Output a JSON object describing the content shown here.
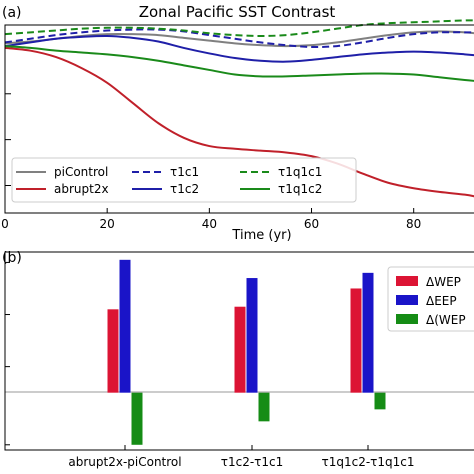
{
  "chart_data": [
    {
      "type": "line",
      "panel_label": "(a)",
      "title": "Zonal Pacific SST Contrast",
      "xlabel": "Time (yr)",
      "ylabel": "",
      "xlim": [
        0,
        92
      ],
      "ylim": [
        -1.8,
        0.25
      ],
      "x_ticks": [
        0,
        20,
        40,
        60,
        80
      ],
      "y_gridlines": [
        0,
        -0.5,
        -1.0,
        -1.5
      ],
      "grid": "y-only",
      "legend": "lower-left, 3 columns",
      "x": [
        0,
        5,
        10,
        15,
        20,
        25,
        30,
        35,
        40,
        45,
        50,
        55,
        60,
        65,
        70,
        75,
        80,
        85,
        90,
        92
      ],
      "series": [
        {
          "name": "piControl",
          "color": "#808080",
          "style": "solid",
          "values": [
            0.05,
            0.07,
            0.1,
            0.13,
            0.15,
            0.15,
            0.14,
            0.11,
            0.08,
            0.05,
            0.03,
            0.02,
            0.03,
            0.06,
            0.1,
            0.14,
            0.17,
            0.18,
            0.17,
            0.16
          ]
        },
        {
          "name": "abrupt2x",
          "color": "#c0202a",
          "style": "solid",
          "values": [
            0.0,
            -0.03,
            -0.1,
            -0.22,
            -0.38,
            -0.6,
            -0.82,
            -0.98,
            -1.07,
            -1.1,
            -1.12,
            -1.14,
            -1.18,
            -1.26,
            -1.37,
            -1.47,
            -1.53,
            -1.57,
            -1.6,
            -1.62
          ]
        },
        {
          "name": "τ1c1",
          "color": "#1f1fa8",
          "style": "dashed",
          "values": [
            0.06,
            0.1,
            0.14,
            0.17,
            0.19,
            0.2,
            0.2,
            0.18,
            0.14,
            0.1,
            0.06,
            0.03,
            0.01,
            0.02,
            0.06,
            0.11,
            0.15,
            0.17,
            0.17,
            0.17
          ]
        },
        {
          "name": "τ1c2",
          "color": "#1f1fa8",
          "style": "solid",
          "values": [
            0.02,
            0.06,
            0.1,
            0.12,
            0.13,
            0.11,
            0.07,
            0.0,
            -0.06,
            -0.11,
            -0.14,
            -0.15,
            -0.13,
            -0.1,
            -0.07,
            -0.05,
            -0.04,
            -0.05,
            -0.07,
            -0.08
          ]
        },
        {
          "name": "τ1q1c1",
          "color": "#1a8a1a",
          "style": "dashed",
          "values": [
            0.15,
            0.17,
            0.19,
            0.21,
            0.22,
            0.22,
            0.21,
            0.19,
            0.16,
            0.14,
            0.13,
            0.14,
            0.17,
            0.21,
            0.25,
            0.27,
            0.28,
            0.29,
            0.3,
            0.3
          ]
        },
        {
          "name": "τ1q1c2",
          "color": "#1a8a1a",
          "style": "solid",
          "values": [
            0.02,
            0.0,
            -0.03,
            -0.05,
            -0.07,
            -0.1,
            -0.14,
            -0.19,
            -0.24,
            -0.29,
            -0.31,
            -0.31,
            -0.3,
            -0.29,
            -0.28,
            -0.28,
            -0.29,
            -0.32,
            -0.35,
            -0.36
          ]
        }
      ]
    },
    {
      "type": "bar",
      "panel_label": "(b)",
      "title": "",
      "xlabel": "",
      "ylabel": "",
      "ylim": [
        -1.1,
        2.7
      ],
      "grid": "off",
      "legend": "top-right",
      "categories": [
        "abrupt2x-piControl",
        "τ1c2-τ1c1",
        "τ1q1c2-τ1q1c1"
      ],
      "series": [
        {
          "name": "ΔWEP",
          "color": "#dc1434",
          "values": [
            1.6,
            1.65,
            2.0
          ]
        },
        {
          "name": "ΔEEP",
          "color": "#1a14c8",
          "values": [
            2.55,
            2.2,
            2.3
          ]
        },
        {
          "name": "Δ(WEP",
          "color": "#158c15",
          "values": [
            -1.0,
            -0.55,
            -0.32
          ]
        }
      ]
    }
  ]
}
